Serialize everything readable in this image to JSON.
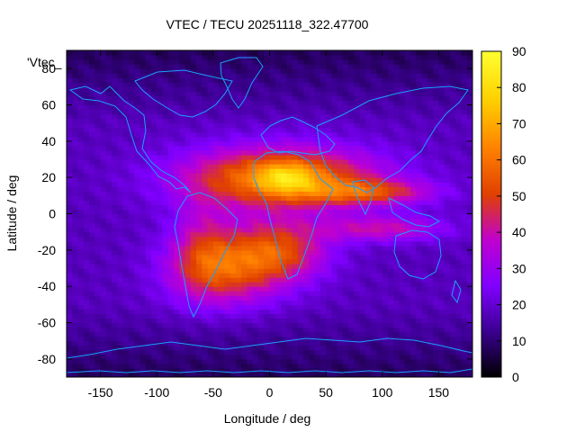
{
  "chart_data": {
    "type": "heatmap",
    "title": "VTEC / TECU 20251118_322.47700",
    "xlabel": "Longitude / deg",
    "ylabel": "Latitude / deg",
    "series_label": "'Vtec_",
    "xlim": [
      -180,
      180
    ],
    "ylim": [
      -90,
      90
    ],
    "x_ticks": [
      -150,
      -100,
      -50,
      0,
      50,
      100,
      150
    ],
    "y_ticks": [
      -80,
      -60,
      -40,
      -20,
      0,
      20,
      40,
      60,
      80
    ],
    "colorbar": {
      "range": [
        0,
        90
      ],
      "ticks": [
        0,
        10,
        20,
        30,
        40,
        50,
        60,
        70,
        80,
        90
      ],
      "palette": [
        "#000000",
        "#3a0090",
        "#8000ff",
        "#c000d0",
        "#e04000",
        "#ff8000",
        "#ffd000",
        "#ffff30"
      ]
    },
    "grid": {
      "lon_step": 5,
      "lat_step": 2.5,
      "background_tecu": 18,
      "features": [
        {
          "name": "main_crest",
          "lon": 10,
          "lat": 20,
          "sig_lon": 60,
          "sig_lat": 12,
          "amp": 48
        },
        {
          "name": "south_atlantic",
          "lon": -40,
          "lat": -30,
          "sig_lon": 35,
          "sig_lat": 14,
          "amp": 34
        },
        {
          "name": "africa_south",
          "lon": 10,
          "lat": -20,
          "sig_lon": 30,
          "sig_lat": 12,
          "amp": 30
        },
        {
          "name": "indian_ocean_band",
          "lon": 90,
          "lat": 12,
          "sig_lon": 40,
          "sig_lat": 5,
          "amp": 26
        },
        {
          "name": "indian_ocean_south",
          "lon": 100,
          "lat": -8,
          "sig_lon": 40,
          "sig_lat": 5,
          "amp": 22
        },
        {
          "name": "sahara_peak",
          "lon": 15,
          "lat": 20,
          "sig_lon": 18,
          "sig_lat": 6,
          "amp": 18
        },
        {
          "name": "south_america",
          "lon": -60,
          "lat": -15,
          "sig_lon": 18,
          "sig_lat": 18,
          "amp": 14
        }
      ]
    }
  }
}
